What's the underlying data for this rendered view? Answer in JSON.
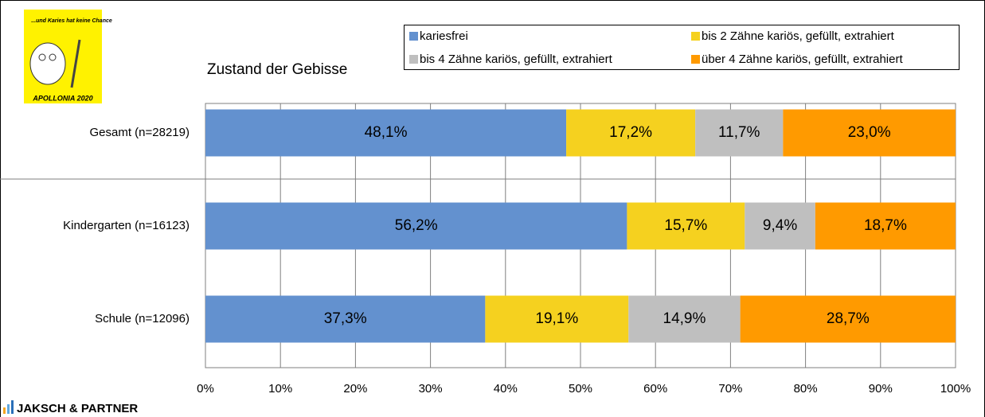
{
  "chart_data": {
    "type": "stacked_bar",
    "orientation": "horizontal",
    "title": "Zustand der Gebisse",
    "categories": [
      "Gesamt (n=28219)",
      "Kindergarten (n=16123)",
      "Schule (n=12096)"
    ],
    "series": [
      {
        "name": "kariesfrei",
        "color": "#6391cf",
        "values": [
          48.1,
          56.2,
          37.3
        ],
        "value_labels": [
          "48,1%",
          "56,2%",
          "37,3%"
        ]
      },
      {
        "name": "bis 2 Zähne kariös, gefüllt, extrahiert",
        "color": "#f5d11f",
        "values": [
          17.2,
          15.7,
          19.1
        ],
        "value_labels": [
          "17,2%",
          "15,7%",
          "19,1%"
        ]
      },
      {
        "name": "bis 4 Zähne kariös, gefüllt, extrahiert",
        "color": "#bfbfbf",
        "values": [
          11.7,
          9.4,
          14.9
        ],
        "value_labels": [
          "11,7%",
          "9,4%",
          "14,9%"
        ]
      },
      {
        "name": "über 4 Zähne kariös, gefüllt, extrahiert",
        "color": "#ff9a00",
        "values": [
          23.0,
          18.7,
          28.7
        ],
        "value_labels": [
          "23,0%",
          "18,7%",
          "28,7%"
        ]
      }
    ],
    "xlim": [
      0,
      100
    ],
    "xticks": [
      {
        "value": 0,
        "label": "0%"
      },
      {
        "value": 10,
        "label": "10%"
      },
      {
        "value": 20,
        "label": "20%"
      },
      {
        "value": 30,
        "label": "30%"
      },
      {
        "value": 40,
        "label": "40%"
      },
      {
        "value": 50,
        "label": "50%"
      },
      {
        "value": 60,
        "label": "60%"
      },
      {
        "value": 70,
        "label": "70%"
      },
      {
        "value": 80,
        "label": "80%"
      },
      {
        "value": 90,
        "label": "90%"
      },
      {
        "value": 100,
        "label": "100%"
      }
    ],
    "grid": true,
    "legend": "top",
    "logo": {
      "slogan": "...und Karies hat keine Chance",
      "name": "APOLLONIA 2020"
    },
    "footer": "JAKSCH & PARTNER"
  }
}
